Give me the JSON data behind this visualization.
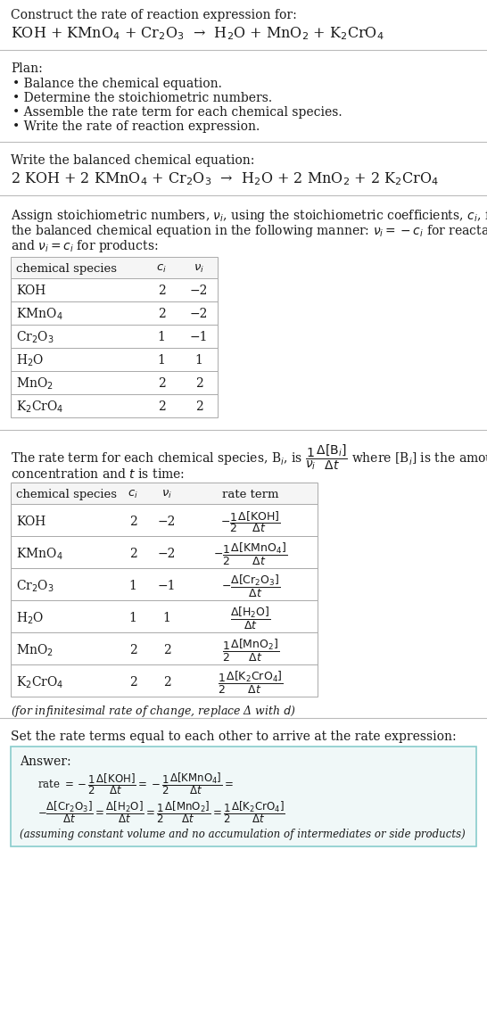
{
  "title_text": "Construct the rate of reaction expression for:",
  "reaction_unbalanced": "KOH + KMnO$_4$ + Cr$_2$O$_3$  →  H$_2$O + MnO$_2$ + K$_2$CrO$_4$",
  "plan_title": "Plan:",
  "plan_items": [
    "• Balance the chemical equation.",
    "• Determine the stoichiometric numbers.",
    "• Assemble the rate term for each chemical species.",
    "• Write the rate of reaction expression."
  ],
  "balanced_label": "Write the balanced chemical equation:",
  "reaction_balanced": "2 KOH + 2 KMnO$_4$ + Cr$_2$O$_3$  →  H$_2$O + 2 MnO$_2$ + 2 K$_2$CrO$_4$",
  "stoich_intro": "Assign stoichiometric numbers, $\\nu_i$, using the stoichiometric coefficients, $c_i$, from\nthe balanced chemical equation in the following manner: $\\nu_i = -c_i$ for reactants\nand $\\nu_i = c_i$ for products:",
  "table1_headers": [
    "chemical species",
    "$c_i$",
    "$\\nu_i$"
  ],
  "table1_data": [
    [
      "KOH",
      "2",
      "−2"
    ],
    [
      "KMnO$_4$",
      "2",
      "−2"
    ],
    [
      "Cr$_2$O$_3$",
      "1",
      "−1"
    ],
    [
      "H$_2$O",
      "1",
      "1"
    ],
    [
      "MnO$_2$",
      "2",
      "2"
    ],
    [
      "K$_2$CrO$_4$",
      "2",
      "2"
    ]
  ],
  "rate_intro_line1": "The rate term for each chemical species, B$_i$, is $\\dfrac{1}{\\nu_i}\\dfrac{\\Delta[\\mathrm{B}_i]}{\\Delta t}$ where [B$_i$] is the amount",
  "rate_intro_line2": "concentration and $t$ is time:",
  "table2_headers": [
    "chemical species",
    "$c_i$",
    "$\\nu_i$",
    "rate term"
  ],
  "table2_data": [
    [
      "KOH",
      "2",
      "−2",
      "$-\\dfrac{1}{2}\\dfrac{\\Delta[\\mathrm{KOH}]}{\\Delta t}$"
    ],
    [
      "KMnO$_4$",
      "2",
      "−2",
      "$-\\dfrac{1}{2}\\dfrac{\\Delta[\\mathrm{KMnO_4}]}{\\Delta t}$"
    ],
    [
      "Cr$_2$O$_3$",
      "1",
      "−1",
      "$-\\dfrac{\\Delta[\\mathrm{Cr_2O_3}]}{\\Delta t}$"
    ],
    [
      "H$_2$O",
      "1",
      "1",
      "$\\dfrac{\\Delta[\\mathrm{H_2O}]}{\\Delta t}$"
    ],
    [
      "MnO$_2$",
      "2",
      "2",
      "$\\dfrac{1}{2}\\dfrac{\\Delta[\\mathrm{MnO_2}]}{\\Delta t}$"
    ],
    [
      "K$_2$CrO$_4$",
      "2",
      "2",
      "$\\dfrac{1}{2}\\dfrac{\\Delta[\\mathrm{K_2CrO_4}]}{\\Delta t}$"
    ]
  ],
  "infinitesimal_note": "(for infinitesimal rate of change, replace Δ with $d$)",
  "set_rate_label": "Set the rate terms equal to each other to arrive at the rate expression:",
  "answer_label": "Answer:",
  "answer_rate_line1": "rate $= -\\dfrac{1}{2}\\dfrac{\\Delta[\\mathrm{KOH}]}{\\Delta t} = -\\dfrac{1}{2}\\dfrac{\\Delta[\\mathrm{KMnO_4}]}{\\Delta t} =$",
  "answer_rate_line2": "$-\\dfrac{\\Delta[\\mathrm{Cr_2O_3}]}{\\Delta t} = \\dfrac{\\Delta[\\mathrm{H_2O}]}{\\Delta t} = \\dfrac{1}{2}\\dfrac{\\Delta[\\mathrm{MnO_2}]}{\\Delta t} = \\dfrac{1}{2}\\dfrac{\\Delta[\\mathrm{K_2CrO_4}]}{\\Delta t}$",
  "answer_footnote": "(assuming constant volume and no accumulation of intermediates or side products)",
  "bg_color": "#ffffff",
  "text_color": "#1a1a1a",
  "sep_color": "#bbbbbb",
  "table_border_color": "#aaaaaa",
  "answer_box_bg": "#f0f8f8",
  "answer_box_border": "#88cccc",
  "font_size": 10.5
}
